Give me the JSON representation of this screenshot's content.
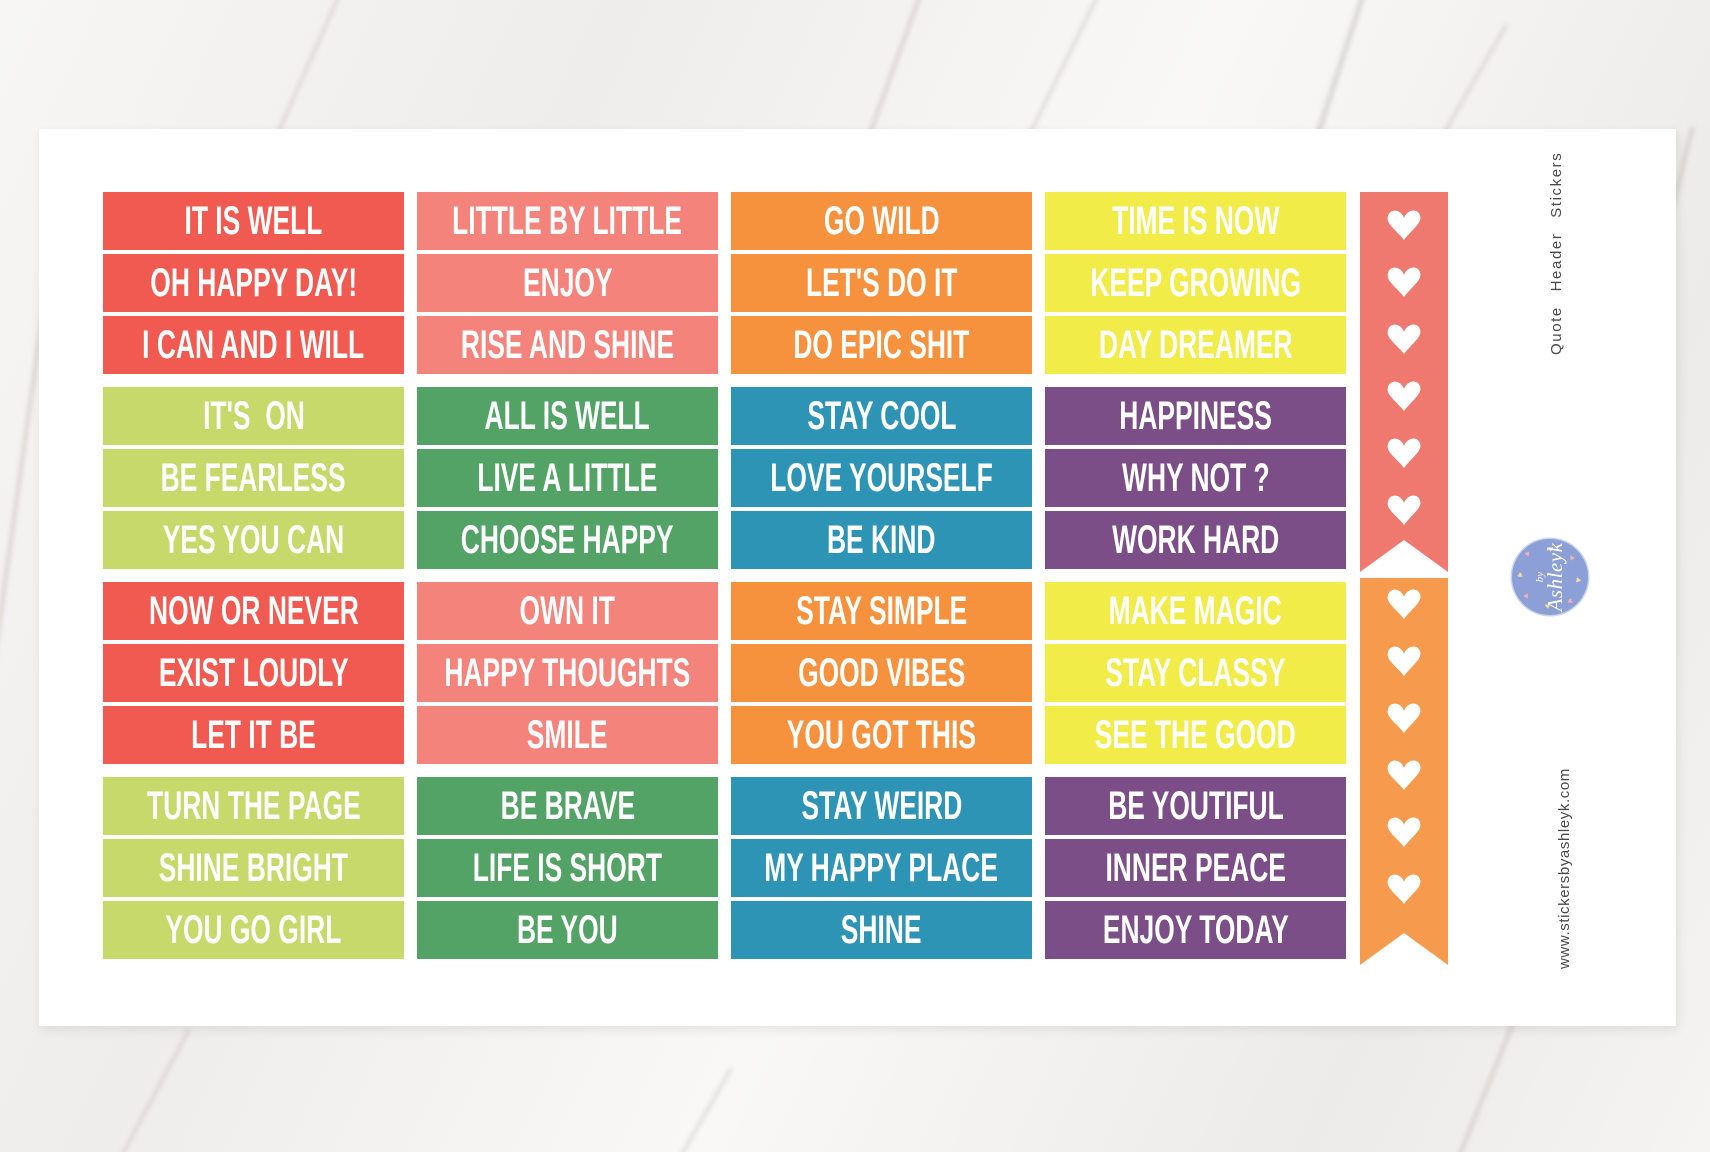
{
  "meta": {
    "vertical_title": "Quote Header Stickers",
    "website": "www.stickersbyashleyk.com",
    "logo_by": "by",
    "logo_name": "Ashleyk"
  },
  "colors": {
    "red": "#F05A50",
    "salmon": "#F4837C",
    "orange": "#F6913E",
    "yellow": "#F2EC49",
    "lightgreen": "#C6D96A",
    "green": "#53A367",
    "teal": "#2E94B5",
    "purple": "#7B4E88",
    "banner_coral": "#F0796F",
    "banner_orange": "#F69B4E",
    "heart": "#FFFFFF",
    "logo_bg": "#8C9FD7",
    "logo_heart_yellow": "#F6DC9C",
    "logo_heart_pink": "#F1AFBA",
    "vertical_text": "#4A4A4A"
  },
  "grid": {
    "groups": [
      {
        "palette": [
          "red",
          "salmon",
          "orange",
          "yellow"
        ],
        "rows": [
          [
            "IT IS WELL",
            "LITTLE BY LITTLE",
            "GO WILD",
            "TIME IS NOW"
          ],
          [
            "OH HAPPY DAY!",
            "ENJOY",
            "LET'S DO IT",
            "KEEP GROWING"
          ],
          [
            "I CAN AND I WILL",
            "RISE AND SHINE",
            "DO EPIC SHIT",
            "DAY DREAMER"
          ]
        ]
      },
      {
        "palette": [
          "lightgreen",
          "green",
          "teal",
          "purple"
        ],
        "rows": [
          [
            "IT'S  ON",
            "ALL IS WELL",
            "STAY COOL",
            "HAPPINESS"
          ],
          [
            "BE FEARLESS",
            "LIVE A LITTLE",
            "LOVE YOURSELF",
            "WHY NOT ?"
          ],
          [
            "YES YOU CAN",
            "CHOOSE HAPPY",
            "BE KIND",
            "WORK HARD"
          ]
        ]
      },
      {
        "palette": [
          "red",
          "salmon",
          "orange",
          "yellow"
        ],
        "rows": [
          [
            "NOW OR NEVER",
            "OWN IT",
            "STAY SIMPLE",
            "MAKE MAGIC"
          ],
          [
            "EXIST LOUDLY",
            "HAPPY THOUGHTS",
            "GOOD VIBES",
            "STAY CLASSY"
          ],
          [
            "LET IT BE",
            "SMILE",
            "YOU GOT THIS",
            "SEE THE GOOD"
          ]
        ]
      },
      {
        "palette": [
          "lightgreen",
          "green",
          "teal",
          "purple"
        ],
        "rows": [
          [
            "TURN THE PAGE",
            "BE BRAVE",
            "STAY WEIRD",
            "BE YOUTIFUL"
          ],
          [
            "SHINE BRIGHT",
            "LIFE IS SHORT",
            "MY HAPPY PLACE",
            "INNER PEACE"
          ],
          [
            "YOU GO GIRL",
            "BE YOU",
            "SHINE",
            "ENJOY TODAY"
          ]
        ]
      }
    ]
  },
  "banners": [
    {
      "name": "coral-heart-banner",
      "color_key": "banner_coral",
      "heart_count": 6
    },
    {
      "name": "orange-heart-banner",
      "color_key": "banner_orange",
      "heart_count": 6
    }
  ]
}
